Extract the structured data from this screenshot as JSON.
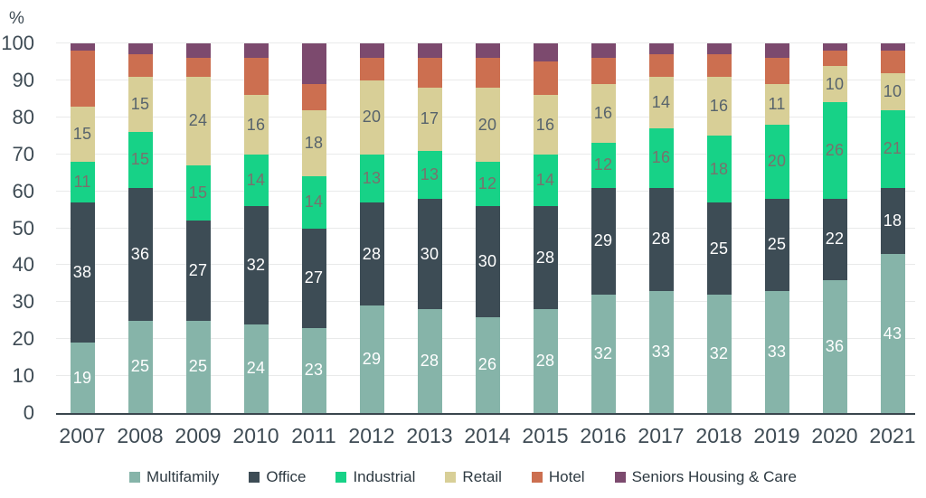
{
  "chart_data": {
    "type": "bar",
    "stacked": true,
    "unit_label": "%",
    "ylim": [
      0,
      100
    ],
    "yticks": [
      0,
      10,
      20,
      30,
      40,
      50,
      60,
      70,
      80,
      90,
      100
    ],
    "grid": "horizontal",
    "legend_position": "bottom",
    "categories": [
      "2007",
      "2008",
      "2009",
      "2010",
      "2011",
      "2012",
      "2013",
      "2014",
      "2015",
      "2016",
      "2017",
      "2018",
      "2019",
      "2020",
      "2021"
    ],
    "series": [
      {
        "name": "Multifamily",
        "color": "#86b4a9",
        "label_color": "#ffffff",
        "show_labels": true,
        "values": [
          19,
          25,
          25,
          24,
          23,
          29,
          28,
          26,
          28,
          32,
          33,
          32,
          33,
          36,
          43
        ]
      },
      {
        "name": "Office",
        "color": "#3d4c55",
        "label_color": "#ffffff",
        "show_labels": true,
        "values": [
          38,
          36,
          27,
          32,
          27,
          28,
          30,
          30,
          28,
          29,
          28,
          25,
          25,
          22,
          18
        ]
      },
      {
        "name": "Industrial",
        "color": "#17d287",
        "label_color": "#79716d",
        "show_labels": true,
        "values": [
          11,
          15,
          15,
          14,
          14,
          13,
          13,
          12,
          14,
          12,
          16,
          18,
          20,
          26,
          21
        ]
      },
      {
        "name": "Retail",
        "color": "#d8cf97",
        "label_color": "#57636c",
        "show_labels": true,
        "values": [
          15,
          15,
          24,
          16,
          18,
          20,
          17,
          20,
          16,
          16,
          14,
          16,
          11,
          10,
          10
        ]
      },
      {
        "name": "Hotel",
        "color": "#cc6f50",
        "label_color": null,
        "show_labels": false,
        "values": [
          15,
          6,
          5,
          10,
          7,
          6,
          8,
          8,
          9,
          7,
          6,
          6,
          7,
          4,
          6
        ]
      },
      {
        "name": "Seniors Housing & Care",
        "color": "#7c4a6e",
        "label_color": null,
        "show_labels": false,
        "values": [
          2,
          3,
          4,
          4,
          11,
          4,
          4,
          4,
          5,
          4,
          3,
          3,
          4,
          2,
          2
        ]
      }
    ]
  },
  "colors": {
    "grid": "#e9eaea",
    "axis_line": "#3a464e",
    "tick_text": "#3e4b54",
    "legend_text": "#2e3a42",
    "background": "#ffffff"
  }
}
